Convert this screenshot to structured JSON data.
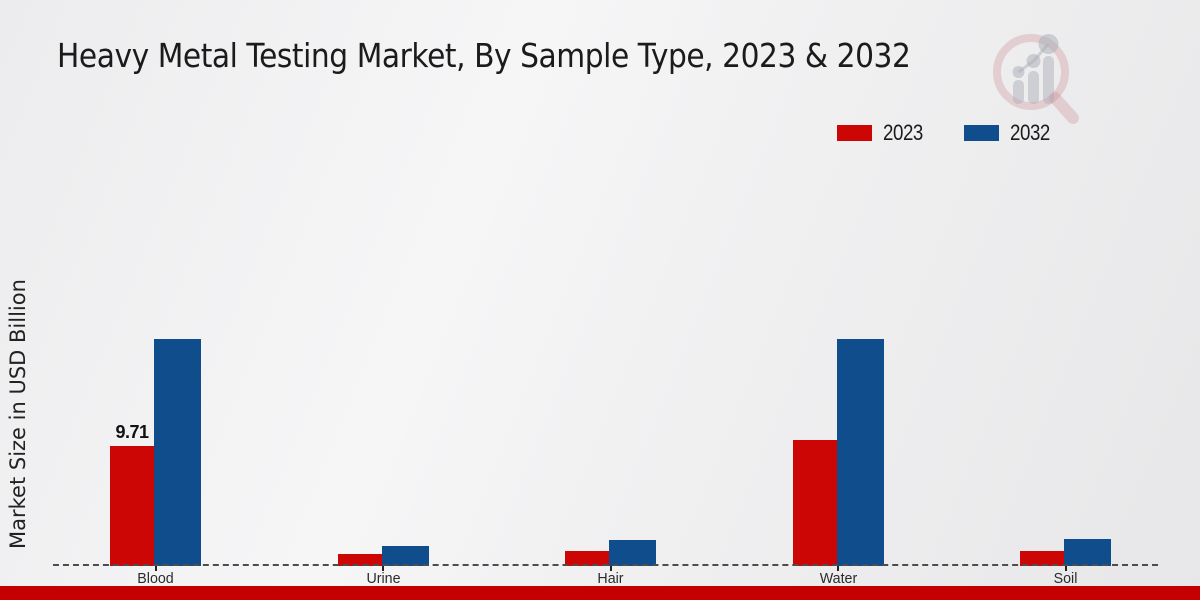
{
  "header": {
    "title": "Heavy Metal Testing Market, By Sample Type, 2023 & 2032",
    "logo": "market-research-future-watermark"
  },
  "colors": {
    "series_2023": "#cc0605",
    "series_2032": "#0f4d8c",
    "footer": "#c40001",
    "baseline": "#4d4d4d"
  },
  "legend": {
    "items": [
      {
        "label": "2023",
        "color": "#cc0605"
      },
      {
        "label": "2032",
        "color": "#0f4d8c"
      }
    ]
  },
  "chart_data": {
    "type": "bar",
    "title": "Heavy Metal Testing Market, By Sample Type, 2023 & 2032",
    "categories": [
      "Blood",
      "Urine",
      "Hair",
      "Water",
      "Soil"
    ],
    "series": [
      {
        "name": "2023",
        "color": "#cc0605",
        "values": [
          9.71,
          0.95,
          1.25,
          10.2,
          1.2
        ],
        "labels": [
          "9.71",
          "",
          "",
          "",
          ""
        ]
      },
      {
        "name": "2032",
        "color": "#0f4d8c",
        "values": [
          18.4,
          1.6,
          2.1,
          18.4,
          2.2
        ],
        "labels": [
          "",
          "",
          "",
          "",
          ""
        ]
      }
    ],
    "xlabel": "",
    "ylabel": "Market Size in USD Billion",
    "ylim": [
      0,
      20
    ],
    "grid": false,
    "legend_position": "top-right",
    "baseline_style": "dashed",
    "annotations": [
      "Only the Blood 2023 bar carries a printed value label: 9.71"
    ]
  }
}
